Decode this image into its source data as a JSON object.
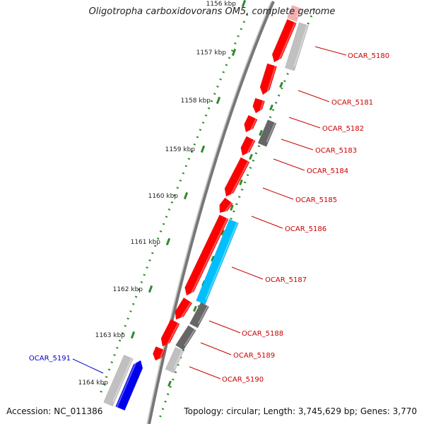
{
  "title": "Oligotropha carboxidovorans OM5, complete genome",
  "footer": {
    "accession": "Accession: NC_011386",
    "summary": "Topology: circular; Length: 3,745,629 bp; Genes: 3,770"
  },
  "colors": {
    "backbone": "#777777",
    "tick": "#2e8b2e",
    "forward_cds": "#ff0000",
    "reverse_cds": "#0000ee",
    "rna": "#00bfff",
    "other_dark": "#666666",
    "other_light": "#c0c0c0",
    "label_red": "#cc0000",
    "label_blue": "#0000cc"
  },
  "scale_labels": [
    "1156 kbp",
    "1157 kbp",
    "1158 kbp",
    "1159 kbp",
    "1160 kbp",
    "1161 kbp",
    "1162 kbp",
    "1163 kbp",
    "1164 kbp"
  ],
  "gene_labels": [
    {
      "name": "OCAR_5180",
      "color": "red"
    },
    {
      "name": "OCAR_5181",
      "color": "red"
    },
    {
      "name": "OCAR_5182",
      "color": "red"
    },
    {
      "name": "OCAR_5183",
      "color": "red"
    },
    {
      "name": "OCAR_5184",
      "color": "red"
    },
    {
      "name": "OCAR_5185",
      "color": "red"
    },
    {
      "name": "OCAR_5186",
      "color": "red"
    },
    {
      "name": "OCAR_5187",
      "color": "red"
    },
    {
      "name": "OCAR_5188",
      "color": "red"
    },
    {
      "name": "OCAR_5189",
      "color": "red"
    },
    {
      "name": "OCAR_5190",
      "color": "red"
    },
    {
      "name": "OCAR_5191",
      "color": "blue"
    }
  ]
}
